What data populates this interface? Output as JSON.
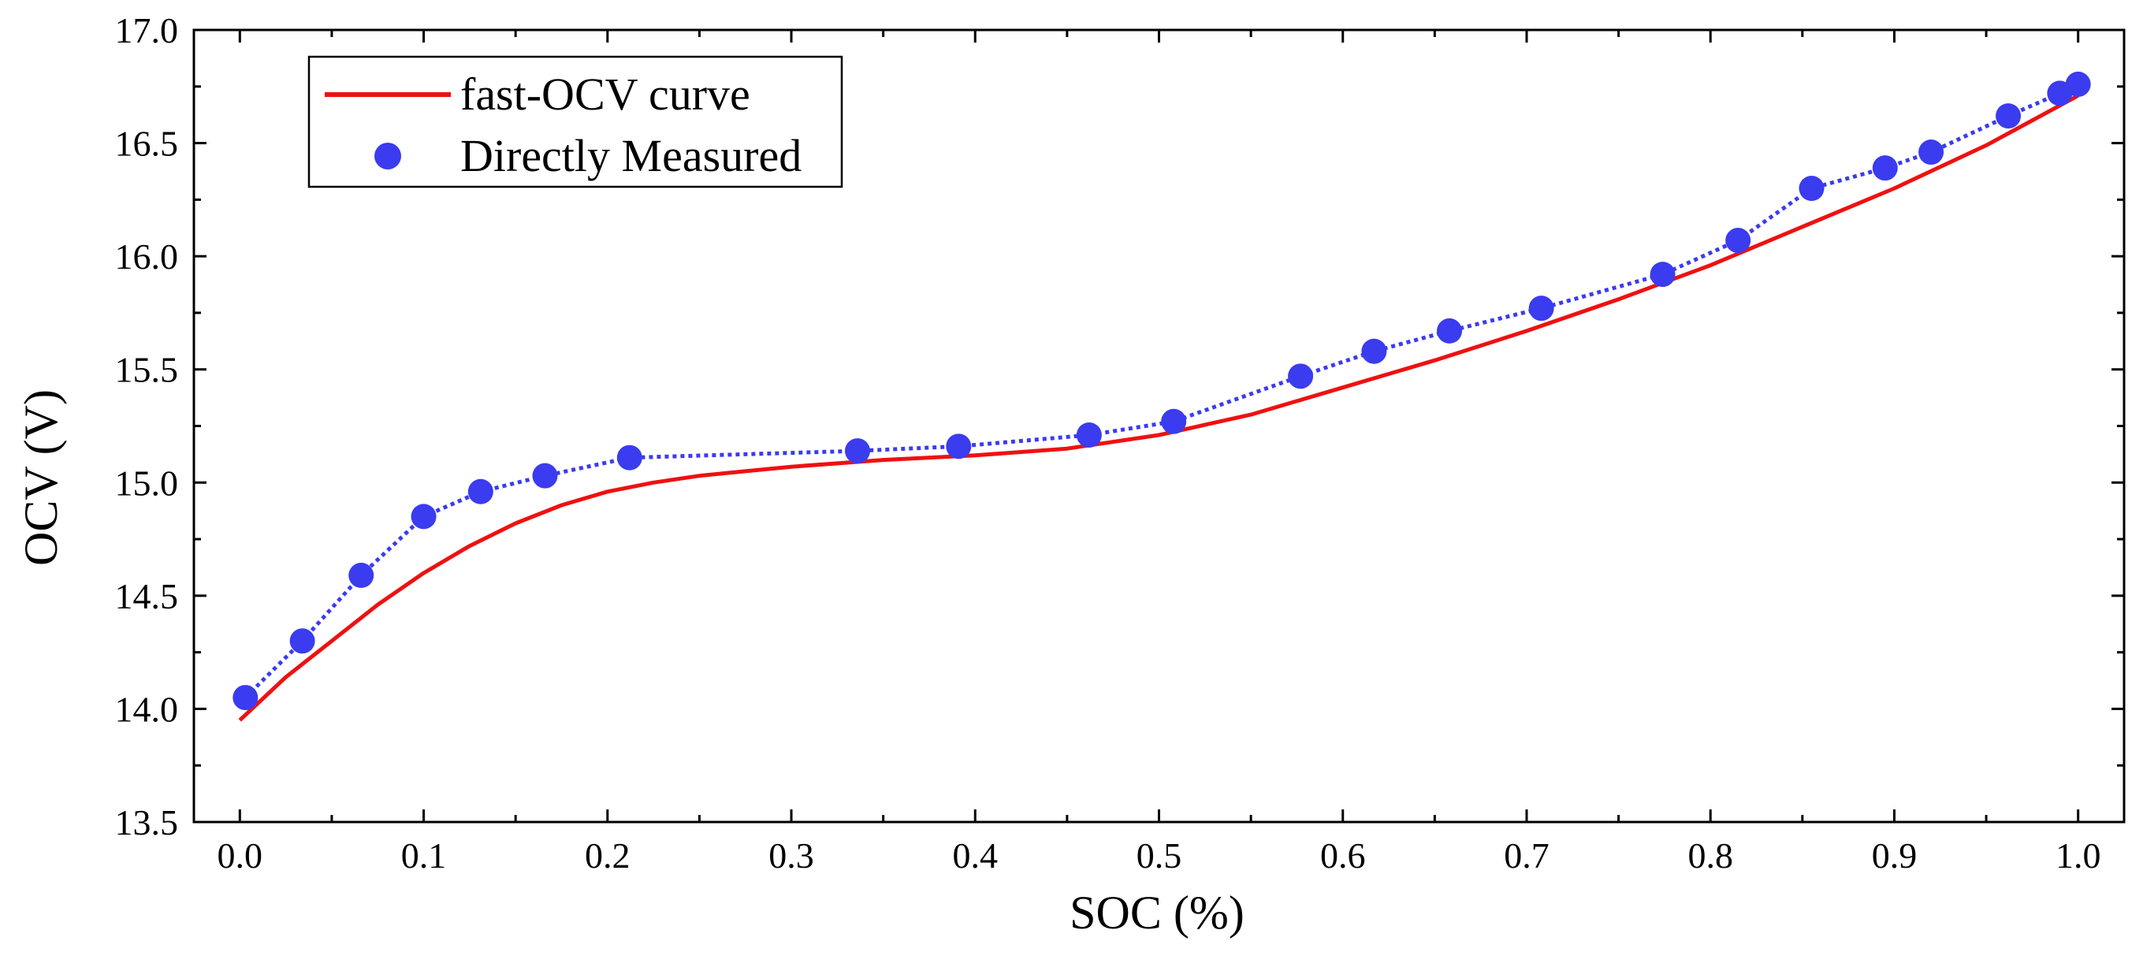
{
  "chart_data": {
    "type": "line",
    "title": "",
    "xlabel": "SOC (%)",
    "ylabel": "OCV (V)",
    "xlim": [
      -0.025,
      1.025
    ],
    "ylim": [
      13.5,
      17.0
    ],
    "x_ticks": [
      "0.0",
      "0.1",
      "0.2",
      "0.3",
      "0.4",
      "0.5",
      "0.6",
      "0.7",
      "0.8",
      "0.9",
      "1.0"
    ],
    "y_ticks": [
      "13.5",
      "14.0",
      "14.5",
      "15.0",
      "15.5",
      "16.0",
      "16.5",
      "17.0"
    ],
    "grid": false,
    "legend_position": "top-left",
    "series": [
      {
        "name": "fast-OCV curve",
        "style": "solid-line",
        "color": "#ee1111",
        "x": [
          0.0,
          0.025,
          0.05,
          0.075,
          0.1,
          0.125,
          0.15,
          0.175,
          0.2,
          0.225,
          0.25,
          0.275,
          0.3,
          0.35,
          0.4,
          0.45,
          0.5,
          0.55,
          0.6,
          0.65,
          0.7,
          0.75,
          0.8,
          0.85,
          0.9,
          0.95,
          1.0
        ],
        "y": [
          13.95,
          14.14,
          14.3,
          14.46,
          14.6,
          14.72,
          14.82,
          14.9,
          14.96,
          15.0,
          15.03,
          15.05,
          15.07,
          15.1,
          15.12,
          15.15,
          15.21,
          15.3,
          15.42,
          15.54,
          15.67,
          15.81,
          15.96,
          16.13,
          16.3,
          16.49,
          16.71
        ]
      },
      {
        "name": "Directly Measured",
        "style": "markers-with-dotted-line",
        "color": "#3b3bf0",
        "x": [
          0.003,
          0.034,
          0.066,
          0.1,
          0.131,
          0.166,
          0.212,
          0.336,
          0.391,
          0.462,
          0.508,
          0.577,
          0.617,
          0.658,
          0.708,
          0.774,
          0.815,
          0.855,
          0.895,
          0.92,
          0.962,
          0.99,
          1.0
        ],
        "y": [
          14.05,
          14.3,
          14.59,
          14.85,
          14.96,
          15.03,
          15.11,
          15.14,
          15.16,
          15.21,
          15.27,
          15.47,
          15.58,
          15.67,
          15.77,
          15.92,
          16.07,
          16.3,
          16.39,
          16.46,
          16.62,
          16.72,
          16.76
        ]
      }
    ]
  }
}
